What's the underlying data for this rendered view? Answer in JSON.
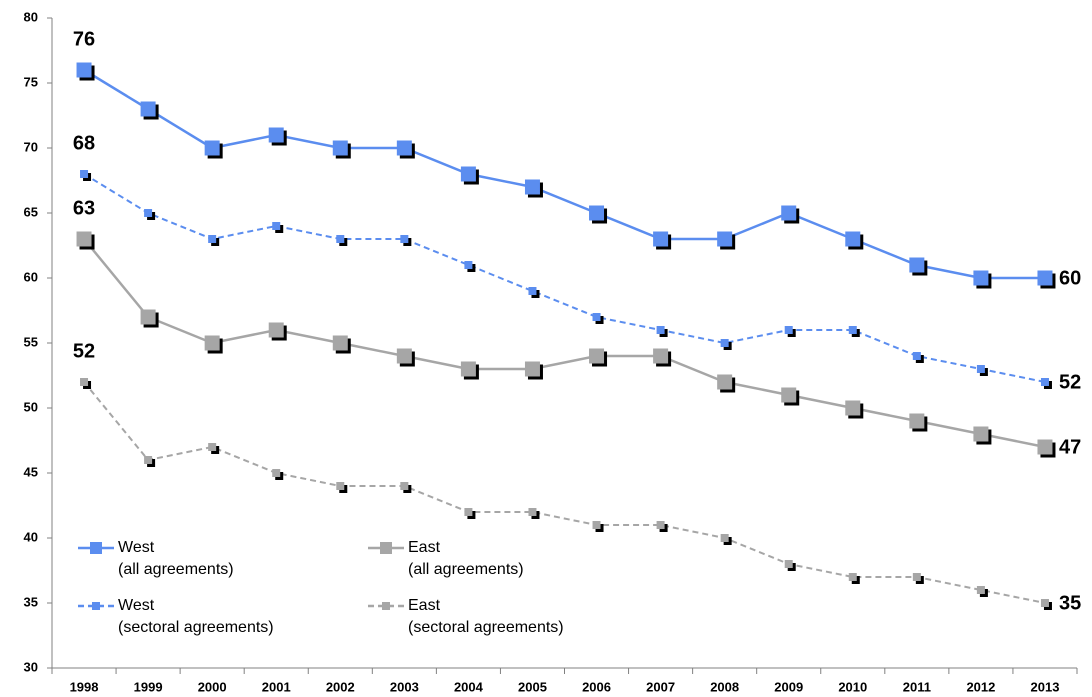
{
  "chart_data": {
    "type": "line",
    "categories": [
      "1998",
      "1999",
      "2000",
      "2001",
      "2002",
      "2003",
      "2004",
      "2005",
      "2006",
      "2007",
      "2008",
      "2009",
      "2010",
      "2011",
      "2012",
      "2013"
    ],
    "series": [
      {
        "name": "West\n(all agreements)",
        "color": "#5b8def",
        "linestyle": "solid",
        "values": [
          76,
          73,
          70,
          71,
          70,
          70,
          68,
          67,
          65,
          63,
          63,
          65,
          63,
          61,
          60,
          60
        ]
      },
      {
        "name": "East\n(all agreements)",
        "color": "#a6a6a6",
        "linestyle": "solid",
        "values": [
          63,
          57,
          55,
          56,
          55,
          54,
          53,
          53,
          54,
          54,
          52,
          51,
          50,
          49,
          48,
          47
        ]
      },
      {
        "name": "West\n(sectoral agreements)",
        "color": "#5b8def",
        "linestyle": "dashed",
        "values": [
          68,
          65,
          63,
          64,
          63,
          63,
          61,
          59,
          57,
          56,
          55,
          56,
          56,
          54,
          53,
          52
        ]
      },
      {
        "name": "East\n(sectoral agreements)",
        "color": "#a6a6a6",
        "linestyle": "dashed",
        "values": [
          52,
          46,
          47,
          45,
          44,
          44,
          42,
          42,
          41,
          41,
          40,
          38,
          37,
          37,
          36,
          35
        ]
      }
    ],
    "ylim": [
      30,
      80
    ],
    "yticks": [
      30,
      35,
      40,
      45,
      50,
      55,
      60,
      65,
      70,
      75,
      80
    ],
    "grid": false,
    "legend": "lower left"
  }
}
